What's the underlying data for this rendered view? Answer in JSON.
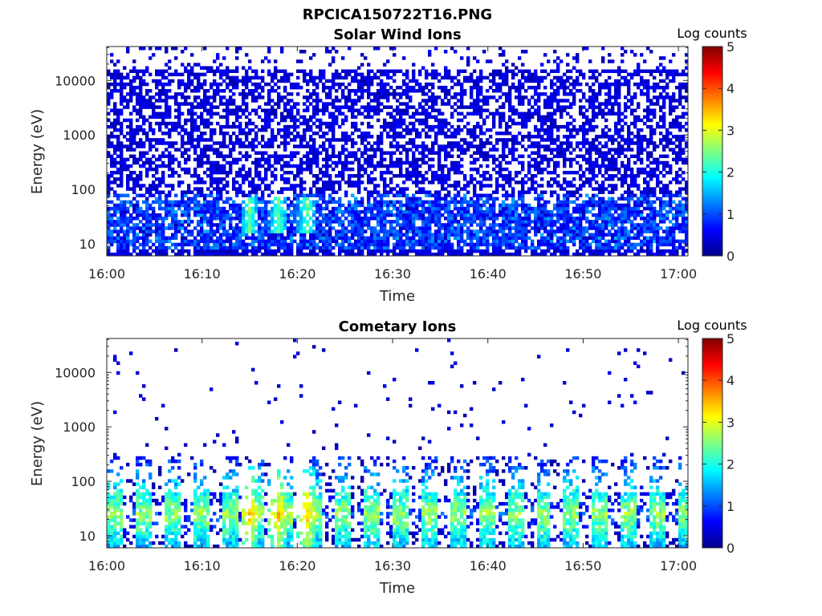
{
  "figure": {
    "title_line1": "RPCICA150722T16.PNG",
    "colormap": "jet",
    "colormap_stops": [
      "#00008f",
      "#0000ff",
      "#0080ff",
      "#00ffff",
      "#80ff80",
      "#ffff00",
      "#ff8000",
      "#ff0000",
      "#800000"
    ]
  },
  "chart_data": [
    {
      "type": "heatmap",
      "title": "Solar Wind Ions",
      "xlabel": "Time",
      "ylabel": "Energy (eV)",
      "x_range": [
        "16:00",
        "17:01"
      ],
      "x_ticks": [
        "16:00",
        "16:10",
        "16:20",
        "16:30",
        "16:40",
        "16:50",
        "17:00"
      ],
      "y_scale": "log",
      "y_range": [
        6,
        42000
      ],
      "y_ticks": [
        10,
        100,
        1000,
        10000
      ],
      "y_tick_labels": [
        "10",
        "100",
        "1000",
        "10000"
      ],
      "colorbar": {
        "label": "Log counts",
        "range": [
          0,
          5
        ],
        "ticks": [
          "0",
          "1",
          "2",
          "3",
          "4",
          "5"
        ]
      },
      "description_values": {
        "background_level_log_counts": 0.3,
        "low_energy_band_eV": [
          10,
          60
        ],
        "peak_log_counts": 2.6,
        "peak_times": [
          "16:15",
          "16:18",
          "16:21"
        ]
      }
    },
    {
      "type": "heatmap",
      "title": "Cometary Ions",
      "xlabel": "Time",
      "ylabel": "Energy (eV)",
      "x_range": [
        "16:00",
        "17:01"
      ],
      "x_ticks": [
        "16:00",
        "16:10",
        "16:20",
        "16:30",
        "16:40",
        "16:50",
        "17:00"
      ],
      "y_scale": "log",
      "y_range": [
        6,
        42000
      ],
      "y_ticks": [
        10,
        100,
        1000,
        10000
      ],
      "y_tick_labels": [
        "10",
        "100",
        "1000",
        "10000"
      ],
      "colorbar": {
        "label": "Log counts",
        "range": [
          0,
          5
        ],
        "ticks": [
          "0",
          "1",
          "2",
          "3",
          "4",
          "5"
        ]
      },
      "description_values": {
        "burst_period_min": 3,
        "burst_peak_energy_eV": 25,
        "peak_log_counts": 3.7,
        "peak_times": [
          "16:15",
          "16:18",
          "16:21"
        ]
      }
    }
  ]
}
